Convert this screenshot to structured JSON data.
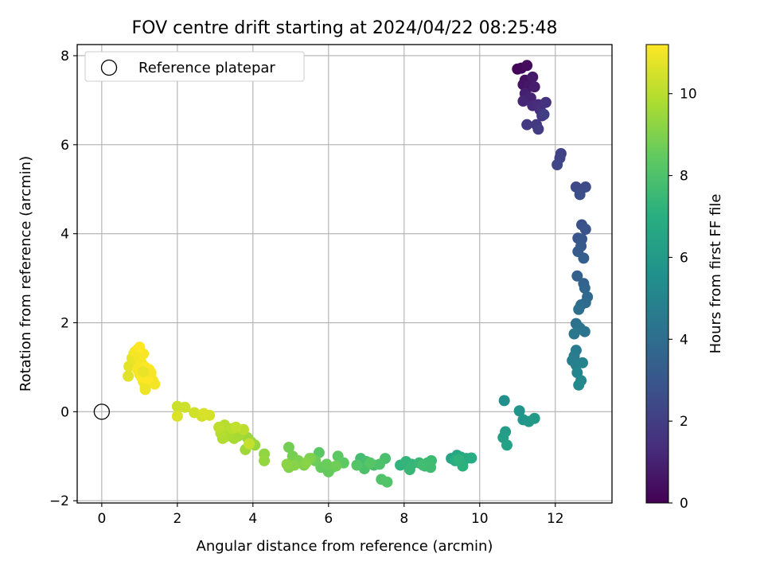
{
  "chart_data": {
    "type": "scatter",
    "title": "FOV centre drift starting at 2024/04/22 08:25:48",
    "xlabel": "Angular distance from reference (arcmin)",
    "ylabel": "Rotation from reference (arcmin)",
    "xlim": [
      -0.65,
      13.5
    ],
    "ylim": [
      -2.05,
      8.25
    ],
    "xticks": [
      0,
      2,
      4,
      6,
      8,
      10,
      12
    ],
    "yticks": [
      -2,
      0,
      2,
      4,
      6,
      8
    ],
    "grid": true,
    "legend": {
      "position": "top-left",
      "entries": [
        "Reference platepar"
      ]
    },
    "reference_point": {
      "x": 0,
      "y": 0
    },
    "colorbar": {
      "label": "Hours from first FF file",
      "range": [
        0,
        11.2
      ],
      "ticks": [
        0,
        2,
        4,
        6,
        8,
        10
      ],
      "colormap": "viridis"
    },
    "series": [
      {
        "color_by": "hours",
        "points": [
          [
            11.0,
            7.7,
            0.1
          ],
          [
            11.1,
            7.72,
            0.2
          ],
          [
            11.25,
            7.78,
            0.3
          ],
          [
            11.2,
            7.45,
            0.45
          ],
          [
            11.15,
            7.35,
            0.55
          ],
          [
            11.3,
            7.3,
            0.65
          ],
          [
            11.4,
            7.52,
            0.75
          ],
          [
            11.45,
            7.3,
            0.85
          ],
          [
            11.2,
            7.15,
            0.95
          ],
          [
            11.35,
            7.05,
            1.05
          ],
          [
            11.15,
            6.98,
            1.15
          ],
          [
            11.4,
            6.88,
            1.25
          ],
          [
            11.55,
            6.9,
            1.35
          ],
          [
            11.6,
            6.78,
            1.45
          ],
          [
            11.75,
            6.95,
            1.55
          ],
          [
            11.65,
            6.65,
            1.65
          ],
          [
            11.5,
            6.45,
            1.75
          ],
          [
            11.25,
            6.45,
            1.85
          ],
          [
            11.55,
            6.35,
            1.95
          ],
          [
            11.7,
            6.68,
            2.05
          ],
          [
            12.15,
            5.8,
            2.15
          ],
          [
            12.12,
            5.7,
            2.25
          ],
          [
            12.05,
            5.55,
            2.35
          ],
          [
            12.55,
            5.05,
            2.45
          ],
          [
            12.8,
            5.05,
            2.55
          ],
          [
            12.65,
            4.88,
            2.65
          ],
          [
            12.7,
            4.2,
            2.75
          ],
          [
            12.8,
            4.1,
            2.85
          ],
          [
            12.6,
            3.9,
            2.95
          ],
          [
            12.7,
            3.88,
            3.05
          ],
          [
            12.68,
            3.72,
            3.15
          ],
          [
            12.6,
            3.6,
            3.25
          ],
          [
            12.75,
            3.45,
            3.35
          ],
          [
            12.58,
            3.05,
            3.45
          ],
          [
            12.75,
            2.88,
            3.55
          ],
          [
            12.78,
            2.78,
            3.65
          ],
          [
            12.85,
            2.58,
            3.75
          ],
          [
            12.8,
            2.45,
            3.85
          ],
          [
            12.68,
            2.4,
            3.95
          ],
          [
            12.62,
            2.3,
            4.05
          ],
          [
            12.55,
            1.98,
            4.15
          ],
          [
            12.65,
            1.88,
            4.25
          ],
          [
            12.78,
            1.8,
            4.35
          ],
          [
            12.5,
            1.75,
            4.45
          ],
          [
            12.55,
            1.38,
            4.55
          ],
          [
            12.5,
            1.25,
            4.65
          ],
          [
            12.45,
            1.15,
            4.75
          ],
          [
            12.55,
            1.05,
            4.85
          ],
          [
            12.72,
            1.1,
            4.95
          ],
          [
            12.58,
            0.88,
            5.05
          ],
          [
            12.68,
            0.7,
            5.15
          ],
          [
            12.62,
            0.6,
            5.25
          ],
          [
            10.65,
            0.25,
            5.55
          ],
          [
            11.05,
            0.02,
            5.75
          ],
          [
            11.15,
            -0.18,
            5.85
          ],
          [
            11.3,
            -0.22,
            5.95
          ],
          [
            11.45,
            -0.15,
            6.05
          ],
          [
            10.68,
            -0.45,
            6.15
          ],
          [
            10.62,
            -0.58,
            6.25
          ],
          [
            10.72,
            -0.75,
            6.35
          ],
          [
            9.25,
            -1.05,
            6.5
          ],
          [
            9.4,
            -0.98,
            6.6
          ],
          [
            9.5,
            -1.02,
            6.7
          ],
          [
            9.65,
            -1.05,
            6.8
          ],
          [
            9.78,
            -1.04,
            6.9
          ],
          [
            9.35,
            -1.1,
            7.0
          ],
          [
            9.55,
            -1.22,
            7.1
          ],
          [
            9.45,
            -1.08,
            7.15
          ],
          [
            7.9,
            -1.2,
            7.25
          ],
          [
            8.05,
            -1.12,
            7.3
          ],
          [
            8.2,
            -1.18,
            7.35
          ],
          [
            8.15,
            -1.3,
            7.4
          ],
          [
            8.4,
            -1.15,
            7.45
          ],
          [
            8.55,
            -1.22,
            7.5
          ],
          [
            8.62,
            -1.15,
            7.55
          ],
          [
            8.72,
            -1.1,
            7.6
          ],
          [
            8.7,
            -1.25,
            7.65
          ],
          [
            8.5,
            -1.2,
            7.7
          ],
          [
            6.85,
            -1.05,
            7.75
          ],
          [
            7.0,
            -1.12,
            7.8
          ],
          [
            7.2,
            -1.2,
            7.85
          ],
          [
            7.5,
            -1.05,
            7.9
          ],
          [
            6.95,
            -1.28,
            7.95
          ],
          [
            7.35,
            -1.18,
            8.0
          ],
          [
            7.4,
            -1.52,
            8.05
          ],
          [
            7.55,
            -1.58,
            8.1
          ],
          [
            6.75,
            -1.2,
            8.15
          ],
          [
            7.1,
            -1.15,
            8.2
          ],
          [
            5.75,
            -0.92,
            8.3
          ],
          [
            6.25,
            -1.0,
            8.35
          ],
          [
            6.4,
            -1.15,
            8.4
          ],
          [
            6.1,
            -1.25,
            8.45
          ],
          [
            6.0,
            -1.35,
            8.5
          ],
          [
            5.8,
            -1.25,
            8.55
          ],
          [
            5.95,
            -1.18,
            8.6
          ],
          [
            5.65,
            -1.1,
            8.65
          ],
          [
            6.2,
            -1.22,
            8.7
          ],
          [
            5.55,
            -1.05,
            8.75
          ],
          [
            4.95,
            -0.8,
            8.8
          ],
          [
            5.05,
            -1.0,
            8.85
          ],
          [
            5.2,
            -1.1,
            8.9
          ],
          [
            5.35,
            -1.2,
            8.95
          ],
          [
            5.5,
            -1.05,
            9.0
          ],
          [
            4.95,
            -1.25,
            9.05
          ],
          [
            5.1,
            -1.2,
            9.1
          ],
          [
            5.4,
            -1.15,
            9.15
          ],
          [
            4.9,
            -1.18,
            9.2
          ],
          [
            4.3,
            -0.95,
            9.3
          ],
          [
            4.3,
            -1.1,
            9.35
          ],
          [
            4.05,
            -0.75,
            9.4
          ],
          [
            3.95,
            -0.68,
            9.45
          ],
          [
            3.85,
            -0.58,
            9.5
          ],
          [
            3.8,
            -0.85,
            9.55
          ],
          [
            3.7,
            -0.45,
            9.6
          ],
          [
            3.6,
            -0.55,
            9.65
          ],
          [
            3.5,
            -0.6,
            9.7
          ],
          [
            3.4,
            -0.5,
            9.75
          ],
          [
            3.3,
            -0.55,
            9.8
          ],
          [
            3.2,
            -0.6,
            9.85
          ],
          [
            3.15,
            -0.48,
            9.9
          ],
          [
            3.25,
            -0.3,
            9.95
          ],
          [
            3.45,
            -0.38,
            10.0
          ],
          [
            3.75,
            -0.4,
            10.05
          ],
          [
            3.1,
            -0.35,
            10.1
          ],
          [
            3.55,
            -0.35,
            10.15
          ],
          [
            3.9,
            -0.72,
            10.2
          ],
          [
            2.0,
            0.12,
            10.3
          ],
          [
            2.2,
            0.1,
            10.35
          ],
          [
            2.45,
            -0.02,
            10.4
          ],
          [
            2.65,
            -0.1,
            10.45
          ],
          [
            2.85,
            -0.08,
            10.5
          ],
          [
            2.7,
            -0.04,
            10.55
          ],
          [
            2.0,
            -0.1,
            10.6
          ],
          [
            0.7,
            0.8,
            10.7
          ],
          [
            0.72,
            1.02,
            10.75
          ],
          [
            0.8,
            1.2,
            10.8
          ],
          [
            0.85,
            1.3,
            10.85
          ],
          [
            0.9,
            1.18,
            10.9
          ],
          [
            0.95,
            1.4,
            10.95
          ],
          [
            1.0,
            1.2,
            11.0
          ],
          [
            1.05,
            1.1,
            11.05
          ],
          [
            1.1,
            1.3,
            11.1
          ],
          [
            1.15,
            1.0,
            11.15
          ],
          [
            1.2,
            0.9,
            11.15
          ],
          [
            1.25,
            0.95,
            11.2
          ],
          [
            1.3,
            0.85,
            11.2
          ],
          [
            1.35,
            0.7,
            11.1
          ],
          [
            1.4,
            0.62,
            11.05
          ],
          [
            1.15,
            0.55,
            11.0
          ],
          [
            1.1,
            0.68,
            10.95
          ],
          [
            1.0,
            0.85,
            11.0
          ],
          [
            0.95,
            0.95,
            11.1
          ],
          [
            1.05,
            0.78,
            11.15
          ],
          [
            1.2,
            0.72,
            11.2
          ],
          [
            1.3,
            0.88,
            11.1
          ],
          [
            1.15,
            0.5,
            10.9
          ],
          [
            0.88,
            1.35,
            11.05
          ],
          [
            1.0,
            1.45,
            11.2
          ],
          [
            1.1,
            0.9,
            10.85
          ]
        ]
      }
    ]
  }
}
